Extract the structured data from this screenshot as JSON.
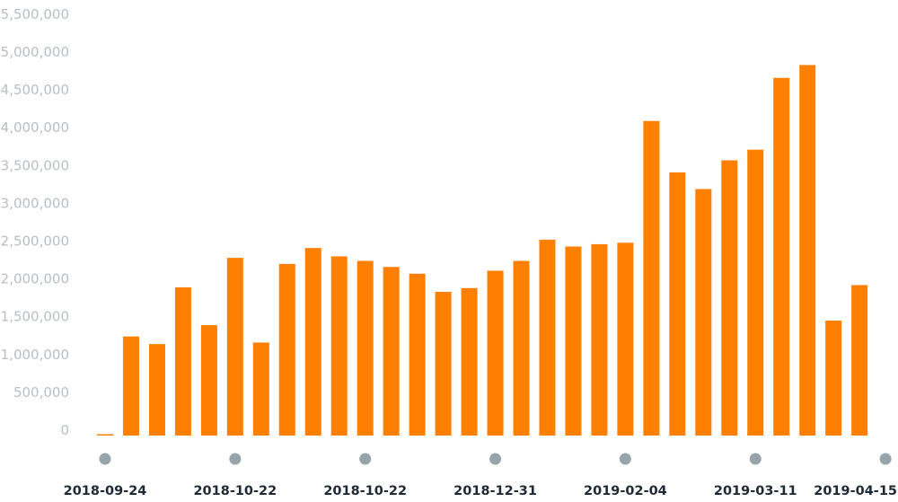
{
  "chart_data": {
    "type": "bar",
    "title": "",
    "xlabel": "",
    "ylabel": "",
    "ylim": [
      0,
      5500000
    ],
    "y_ticks": [
      "0",
      "500,000",
      "1,000,000",
      "1,500,000",
      "2,000,000",
      "2,500,000",
      "3,000,000",
      "3,500,000",
      "4,000,000",
      "4,500,000",
      "5,000,000",
      "5,500,000"
    ],
    "y_tick_values": [
      0,
      500000,
      1000000,
      1500000,
      2000000,
      2500000,
      3000000,
      3500000,
      4000000,
      4500000,
      5000000,
      5500000
    ],
    "x_tick_labels": [
      "2018-09-24",
      "2018-10-22",
      "2018-10-22",
      "2018-12-31",
      "2019-02-04",
      "2019-03-11",
      "2019-04-15"
    ],
    "x_tick_every_n_bars": 5,
    "grid": false,
    "values": [
      10000,
      1310000,
      1210000,
      1960000,
      1460000,
      2350000,
      1230000,
      2270000,
      2480000,
      2370000,
      2310000,
      2230000,
      2140000,
      1900000,
      1950000,
      2180000,
      2310000,
      2590000,
      2500000,
      2530000,
      2550000,
      4160000,
      3480000,
      3260000,
      3640000,
      3780000,
      4730000,
      4900000,
      1520000,
      1990000
    ],
    "colors": {
      "bar": "#ff7f00",
      "tick_marker": "#98a4ab",
      "y_label": "#b7bec6",
      "x_label": "#1e2a36"
    }
  }
}
